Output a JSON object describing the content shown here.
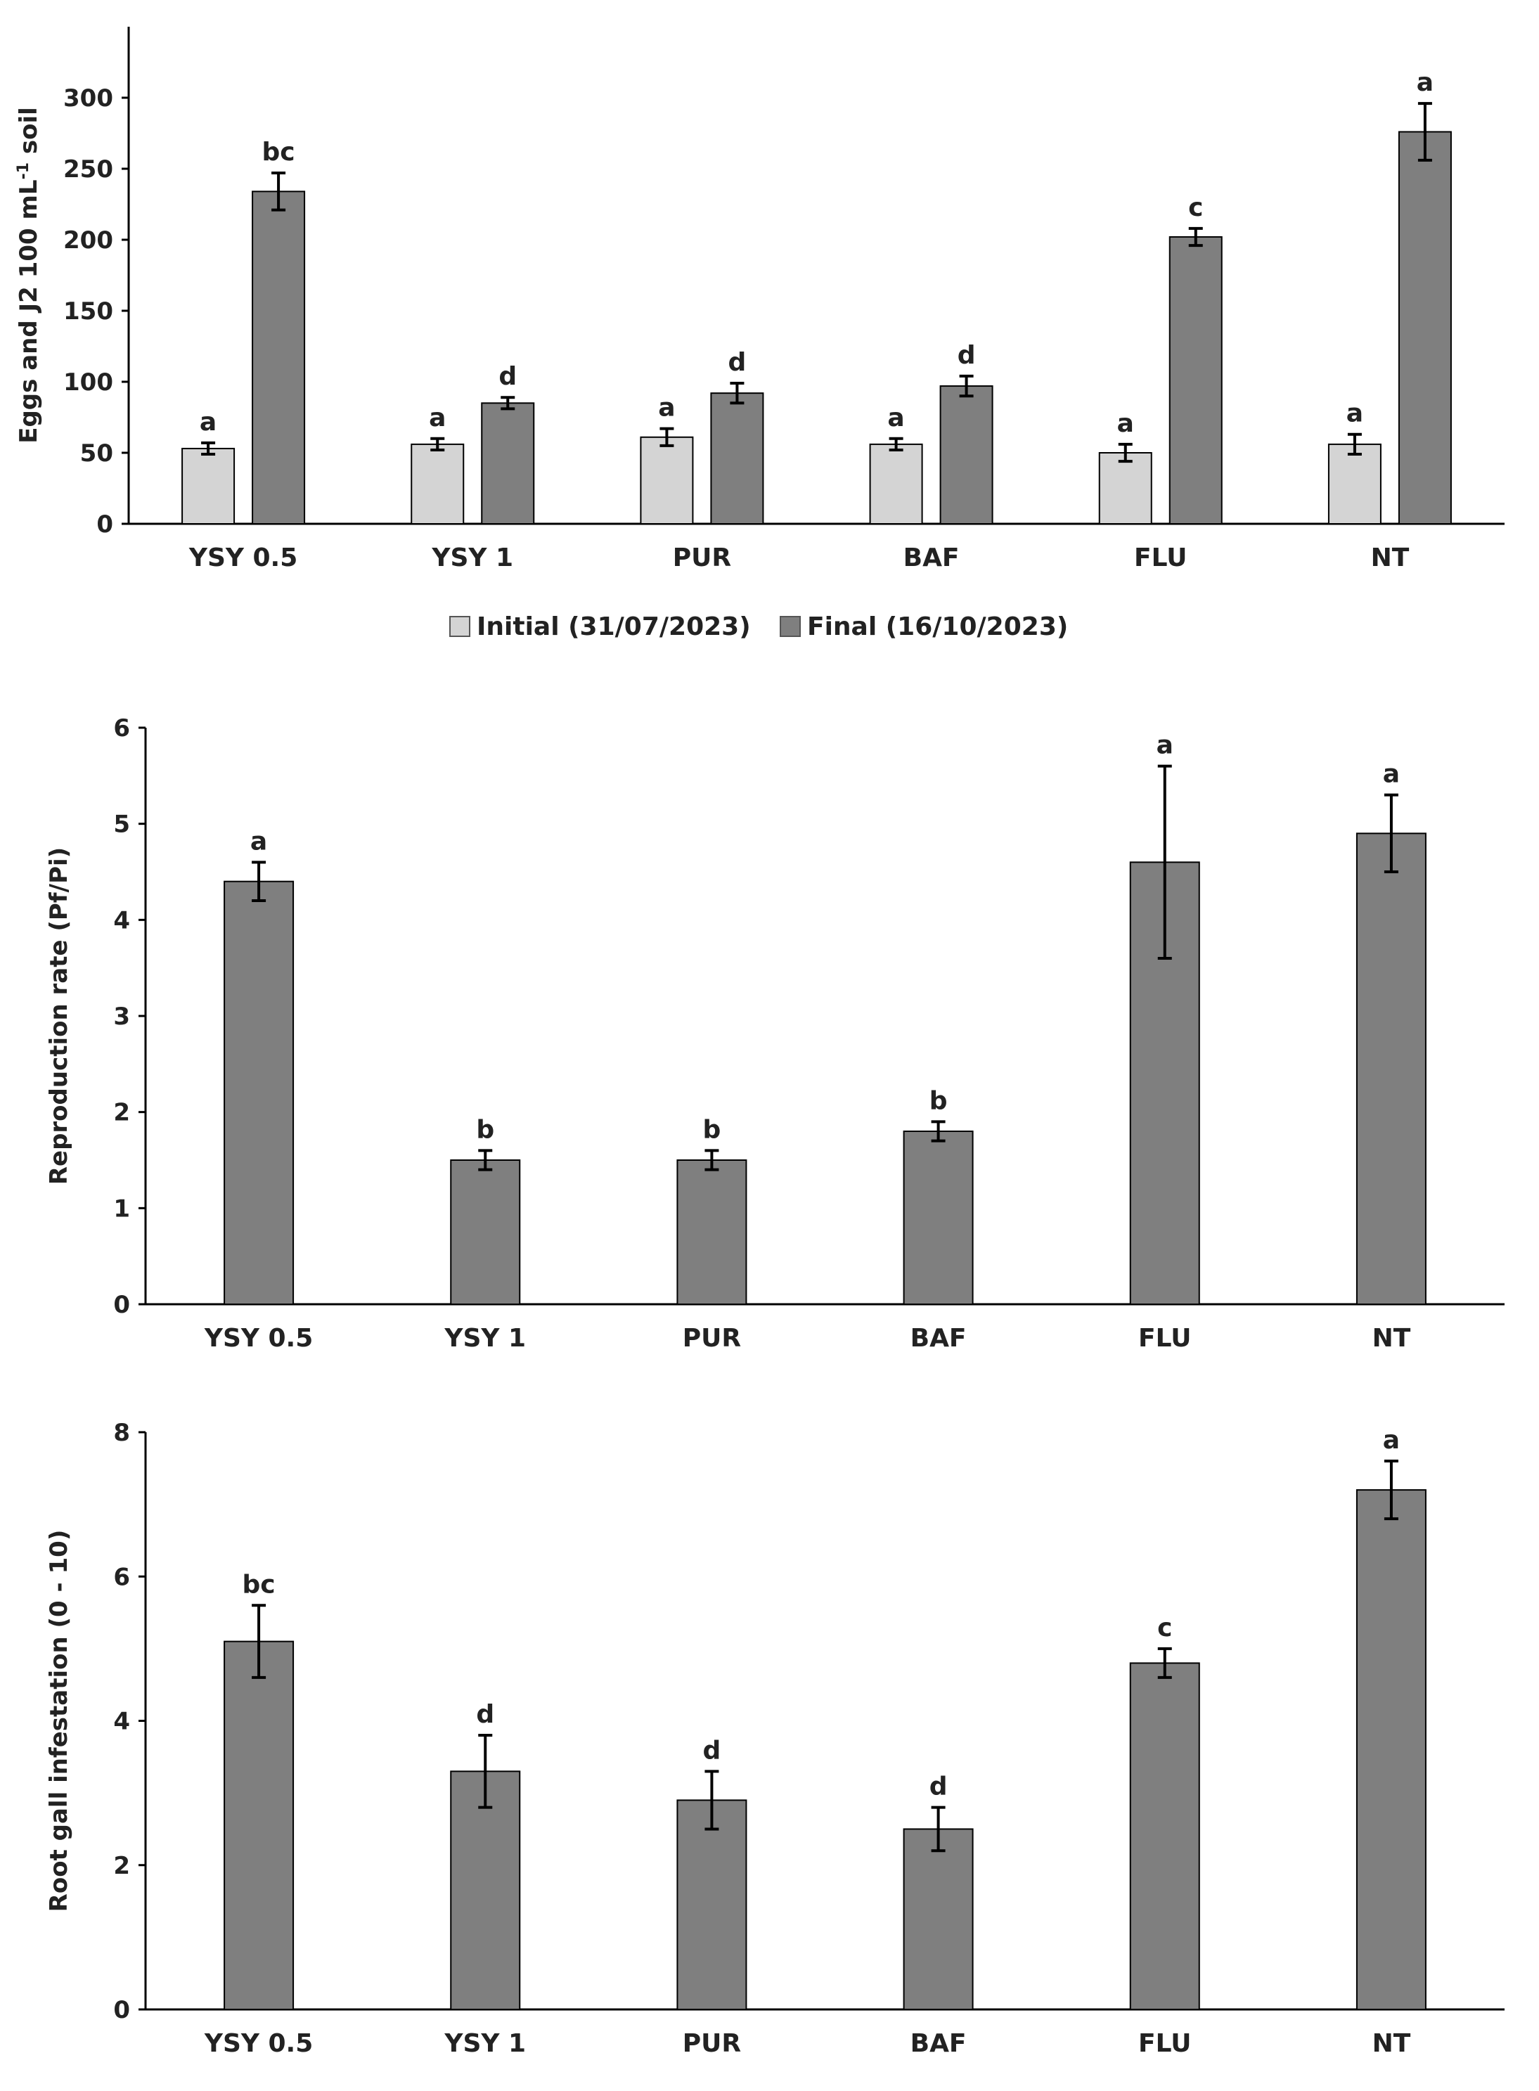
{
  "chart_data": [
    {
      "type": "bar",
      "id": "eggs-j2-chart",
      "ylabel": "Eggs and J2 100 mL",
      "ylabel_superscript": "-1",
      "ylabel_suffix": " soil",
      "ylim": [
        0,
        350
      ],
      "yticks": [
        0,
        50,
        100,
        150,
        200,
        250,
        300
      ],
      "categories": [
        "YSY 0.5",
        "YSY 1",
        "PUR",
        "BAF",
        "FLU",
        "NT"
      ],
      "series": [
        {
          "name": "Initial (31/07/2023)",
          "color": "#d4d4d4",
          "values": [
            53,
            56,
            61,
            56,
            50,
            56
          ],
          "errors": [
            4,
            4,
            6,
            4,
            6,
            7
          ],
          "letters": [
            "a",
            "a",
            "a",
            "a",
            "a",
            "a"
          ]
        },
        {
          "name": "Final (16/10/2023)",
          "color": "#7f7f7f",
          "values": [
            234,
            85,
            92,
            97,
            202,
            276
          ],
          "errors": [
            13,
            4,
            7,
            7,
            6,
            20
          ],
          "letters": [
            "bc",
            "d",
            "d",
            "d",
            "c",
            "a"
          ]
        }
      ],
      "legend": [
        "Initial (31/07/2023)",
        "Final (16/10/2023)"
      ],
      "legend_position": "bottom"
    },
    {
      "type": "bar",
      "id": "reproduction-chart",
      "ylabel": "Reproduction rate (Pf/Pi)",
      "ylim": [
        0,
        6
      ],
      "yticks": [
        0,
        1,
        2,
        3,
        4,
        5,
        6
      ],
      "categories": [
        "YSY 0.5",
        "YSY 1",
        "PUR",
        "BAF",
        "FLU",
        "NT"
      ],
      "series": [
        {
          "name": "Reproduction rate",
          "color": "#7f7f7f",
          "values": [
            4.4,
            1.5,
            1.5,
            1.8,
            4.6,
            4.9
          ],
          "errors": [
            0.2,
            0.1,
            0.1,
            0.1,
            1.0,
            0.4
          ],
          "letters": [
            "a",
            "b",
            "b",
            "b",
            "a",
            "a"
          ]
        }
      ]
    },
    {
      "type": "bar",
      "id": "root-gall-chart",
      "ylabel": "Root gall infestation (0 - 10)",
      "ylim": [
        0,
        8
      ],
      "yticks": [
        0,
        2,
        4,
        6,
        8
      ],
      "categories": [
        "YSY 0.5",
        "YSY 1",
        "PUR",
        "BAF",
        "FLU",
        "NT"
      ],
      "series": [
        {
          "name": "Root gall infestation",
          "color": "#7f7f7f",
          "values": [
            5.1,
            3.3,
            2.9,
            2.5,
            4.8,
            7.2
          ],
          "errors": [
            0.5,
            0.5,
            0.4,
            0.3,
            0.2,
            0.4
          ],
          "letters": [
            "bc",
            "d",
            "d",
            "d",
            "c",
            "a"
          ]
        }
      ]
    }
  ]
}
